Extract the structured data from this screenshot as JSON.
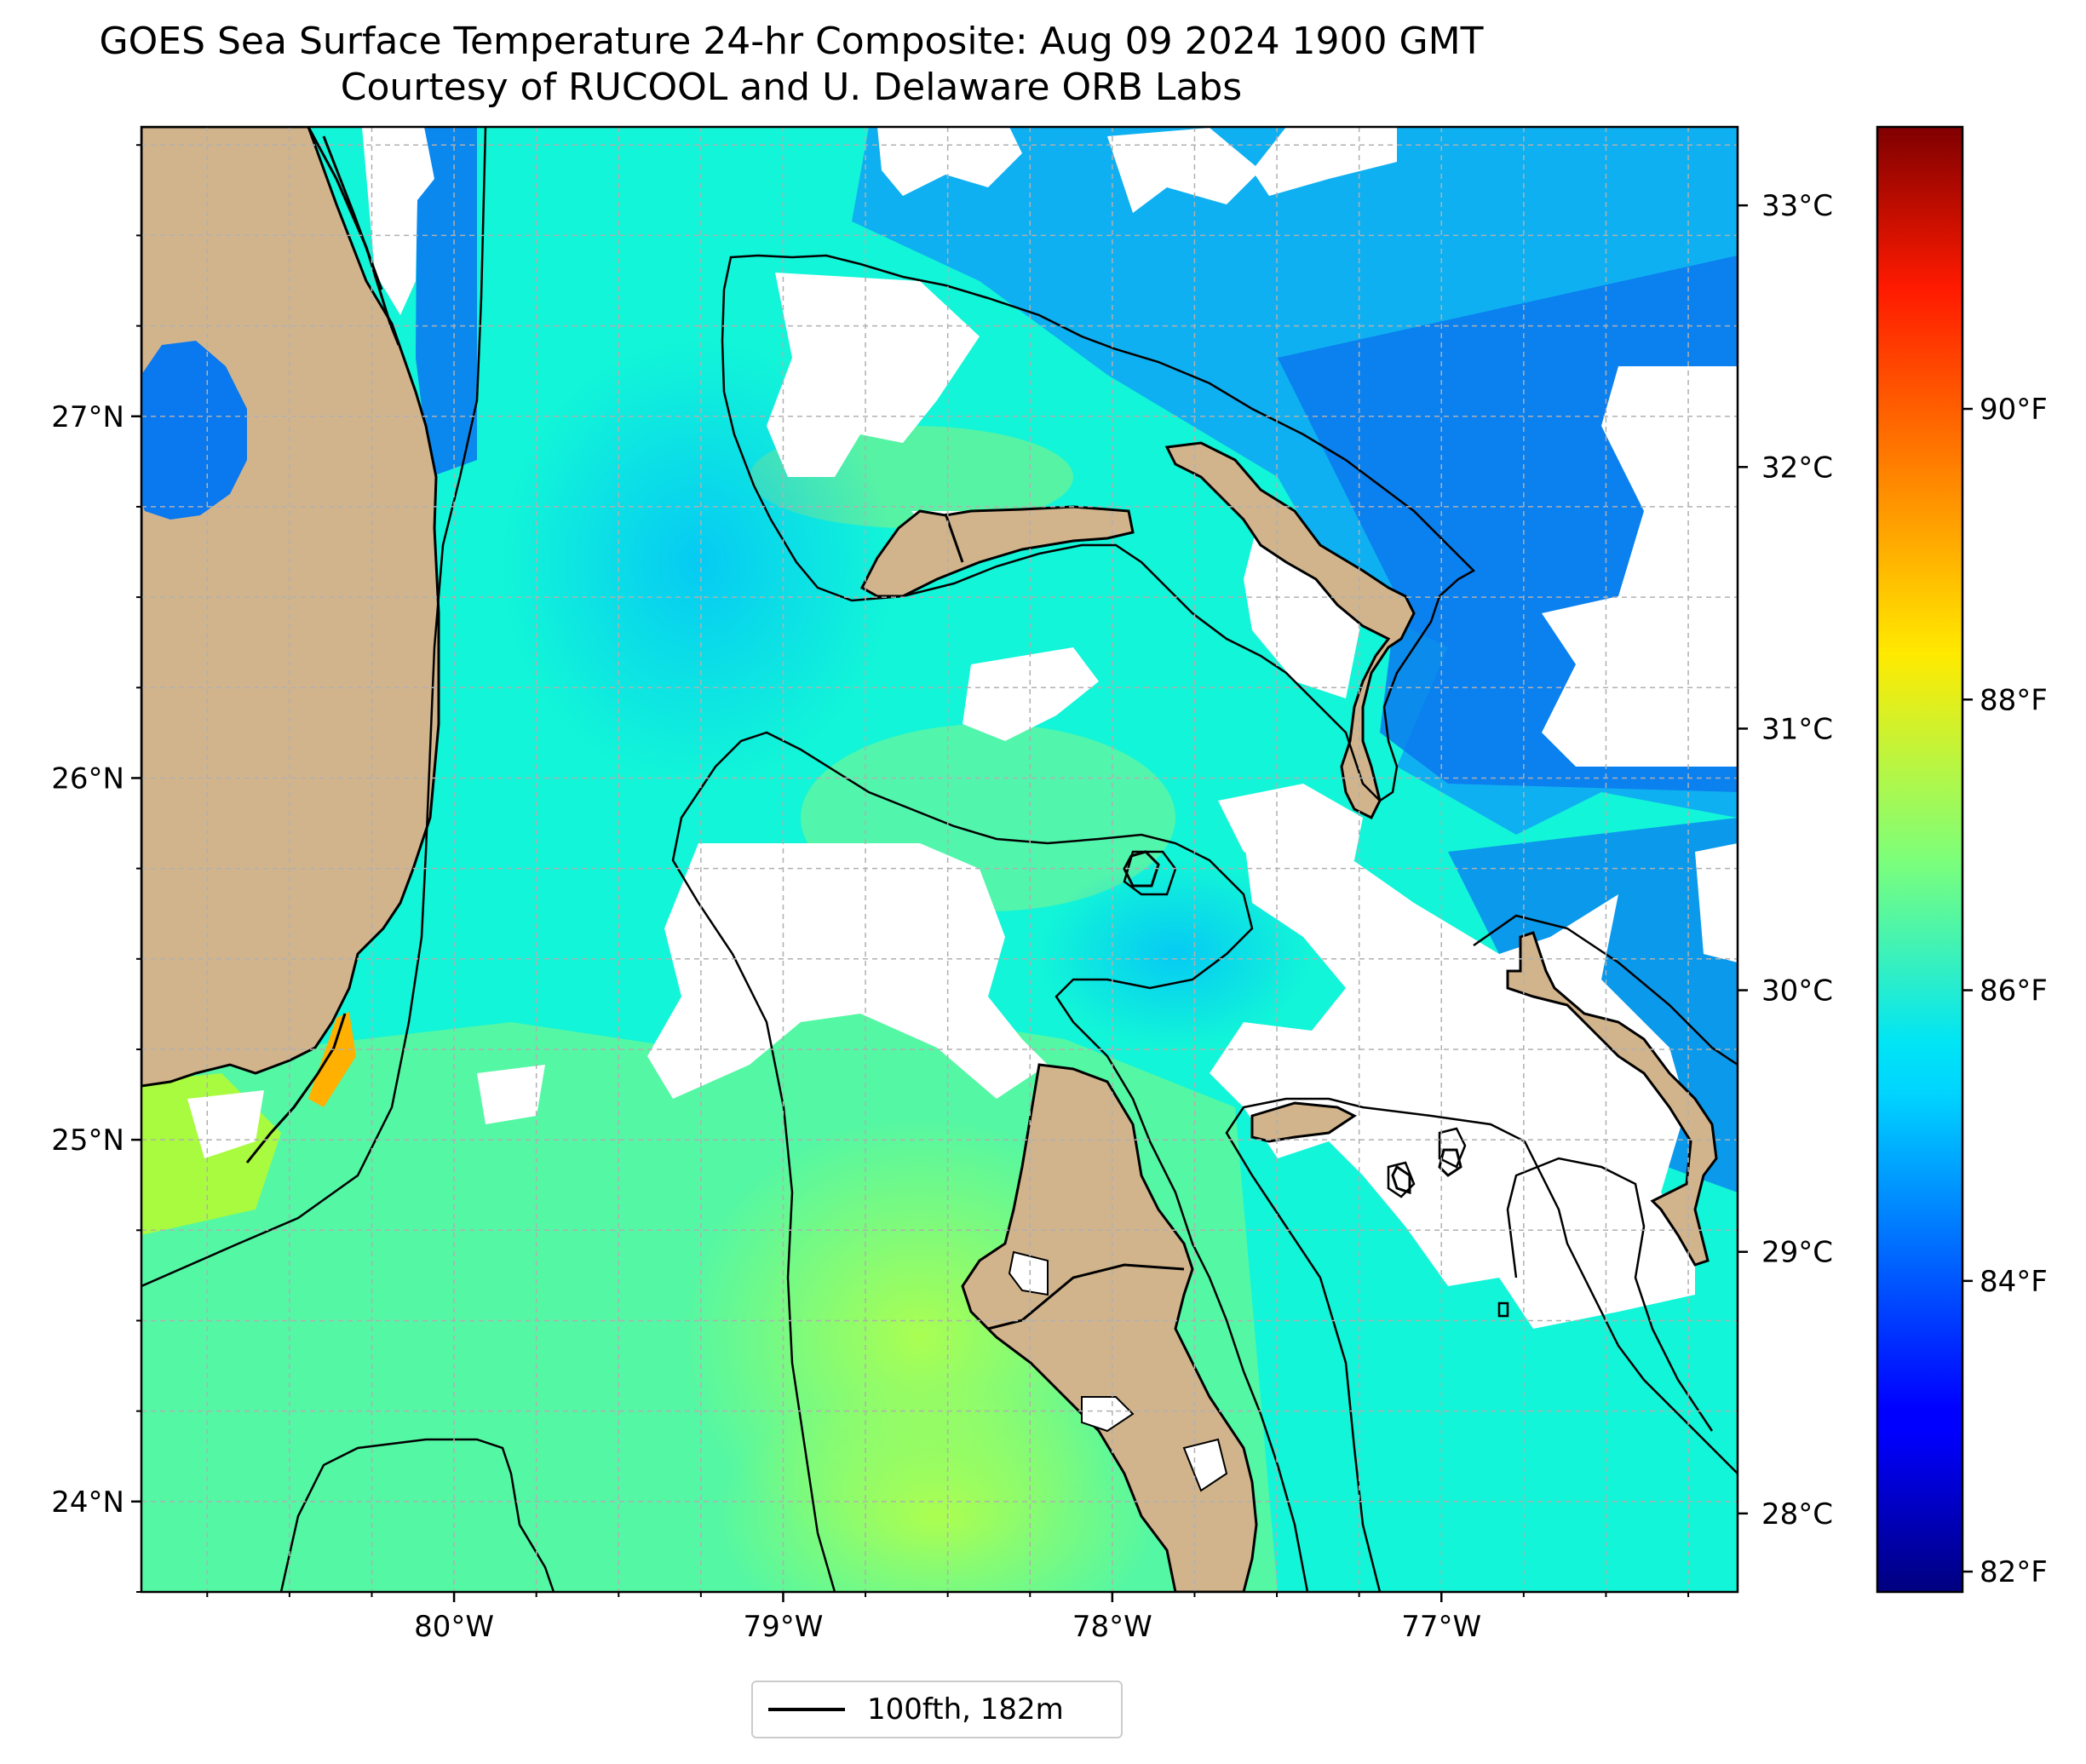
{
  "title": {
    "line1": "GOES Sea Surface Temperature 24-hr Composite: Aug 09 2024 1900 GMT",
    "line2": "Courtesy of RUCOOL and U. Delaware ORB Labs"
  },
  "map": {
    "lon_range": [
      -80.95,
      -76.1
    ],
    "lat_range": [
      23.75,
      27.8
    ],
    "lon_ticks": [
      {
        "value": -80,
        "label": "80°W"
      },
      {
        "value": -79,
        "label": "79°W"
      },
      {
        "value": -78,
        "label": "78°W"
      },
      {
        "value": -77,
        "label": "77°W"
      }
    ],
    "lat_ticks": [
      {
        "value": 24,
        "label": "24°N"
      },
      {
        "value": 25,
        "label": "25°N"
      },
      {
        "value": 26,
        "label": "26°N"
      },
      {
        "value": 27,
        "label": "27°N"
      }
    ],
    "grid": true,
    "land_color": "#d2b48c",
    "no_data_color": "#ffffff"
  },
  "colorbar": {
    "colormap": "jet",
    "range_c": [
      27.7,
      33.3
    ],
    "celsius_ticks": [
      {
        "value": 28,
        "label": "28°C"
      },
      {
        "value": 29,
        "label": "29°C"
      },
      {
        "value": 30,
        "label": "30°C"
      },
      {
        "value": 31,
        "label": "31°C"
      },
      {
        "value": 32,
        "label": "32°C"
      },
      {
        "value": 33,
        "label": "33°C"
      }
    ],
    "fahrenheit_ticks": [
      {
        "value": 82,
        "label": "82°F"
      },
      {
        "value": 84,
        "label": "84°F"
      },
      {
        "value": 86,
        "label": "86°F"
      },
      {
        "value": 88,
        "label": "88°F"
      },
      {
        "value": 90,
        "label": "90°F"
      }
    ]
  },
  "legend": {
    "entries": [
      {
        "label": "100fth, 182m",
        "color": "#000000"
      }
    ]
  }
}
